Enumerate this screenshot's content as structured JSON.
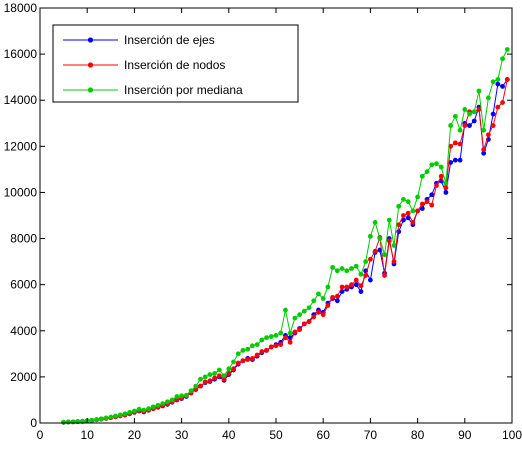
{
  "chart_data": {
    "type": "line",
    "title": "",
    "xlabel": "",
    "ylabel": "",
    "xlim": [
      0,
      100
    ],
    "ylim": [
      0,
      18000
    ],
    "xticks": [
      0,
      10,
      20,
      30,
      40,
      50,
      60,
      70,
      80,
      90,
      100
    ],
    "yticks": [
      0,
      2000,
      4000,
      6000,
      8000,
      10000,
      12000,
      14000,
      16000,
      18000
    ],
    "xtick_labels": [
      "0",
      "10",
      "20",
      "30",
      "40",
      "50",
      "60",
      "70",
      "80",
      "90",
      "100"
    ],
    "ytick_labels": [
      "0",
      "2000",
      "4000",
      "6000",
      "8000",
      "10000",
      "12000",
      "14000",
      "16000",
      "18000"
    ],
    "grid": false,
    "legend_position": "top-left",
    "x": [
      5,
      6,
      7,
      8,
      9,
      10,
      11,
      12,
      13,
      14,
      15,
      16,
      17,
      18,
      19,
      20,
      21,
      22,
      23,
      24,
      25,
      26,
      27,
      28,
      29,
      30,
      31,
      32,
      33,
      34,
      35,
      36,
      37,
      38,
      39,
      40,
      41,
      42,
      43,
      44,
      45,
      46,
      47,
      48,
      49,
      50,
      51,
      52,
      53,
      54,
      55,
      56,
      57,
      58,
      59,
      60,
      61,
      62,
      63,
      64,
      65,
      66,
      67,
      68,
      69,
      70,
      71,
      72,
      73,
      74,
      75,
      76,
      77,
      78,
      79,
      80,
      81,
      82,
      83,
      84,
      85,
      86,
      87,
      88,
      89,
      90,
      91,
      92,
      93,
      94,
      95,
      96,
      97,
      98,
      99
    ],
    "series": [
      {
        "name": "Inserción de ejes",
        "color": "#0000ff",
        "values": [
          30,
          40,
          50,
          60,
          70,
          90,
          110,
          140,
          170,
          200,
          230,
          270,
          310,
          350,
          400,
          460,
          520,
          480,
          550,
          620,
          680,
          740,
          810,
          900,
          1000,
          1060,
          1150,
          1300,
          1450,
          1600,
          1750,
          1800,
          1900,
          2000,
          1850,
          2100,
          2300,
          2550,
          2700,
          2800,
          2750,
          2900,
          3050,
          3150,
          3300,
          3400,
          3500,
          3800,
          3700,
          3900,
          4100,
          4300,
          4400,
          4700,
          4900,
          4800,
          5200,
          5400,
          5300,
          5700,
          5800,
          5900,
          6000,
          5700,
          6600,
          6200,
          7400,
          7500,
          6500,
          8000,
          6900,
          8300,
          8800,
          8900,
          8600,
          9200,
          9300,
          9700,
          9900,
          10400,
          10500,
          10000,
          11300,
          11400,
          11400,
          13000,
          12900,
          13100,
          13700,
          11700,
          12300,
          13400,
          14700,
          14600,
          14900
        ]
      },
      {
        "name": "Inserción de nodos",
        "color": "#ff0000",
        "values": [
          30,
          40,
          50,
          60,
          70,
          90,
          110,
          140,
          170,
          200,
          230,
          270,
          310,
          350,
          400,
          470,
          540,
          500,
          560,
          620,
          690,
          760,
          840,
          920,
          1020,
          1090,
          1180,
          1300,
          1450,
          1600,
          1780,
          1830,
          1950,
          2050,
          1900,
          2150,
          2350,
          2600,
          2700,
          2750,
          2800,
          2950,
          3100,
          3150,
          3300,
          3350,
          3400,
          3700,
          3500,
          3950,
          4050,
          4300,
          4400,
          4600,
          4800,
          4700,
          5100,
          5450,
          5500,
          5900,
          5900,
          6000,
          6200,
          5950,
          6400,
          7100,
          7450,
          8050,
          6400,
          7900,
          7000,
          8600,
          9000,
          9100,
          8700,
          9200,
          9500,
          9600,
          9450,
          10300,
          10700,
          10200,
          12000,
          12150,
          12100,
          12900,
          13500,
          13500,
          13600,
          11850,
          12500,
          12900,
          13700,
          13900,
          14900
        ]
      },
      {
        "name": "Inserción por mediana",
        "color": "#00cc00",
        "values": [
          30,
          40,
          50,
          60,
          80,
          100,
          120,
          150,
          180,
          220,
          260,
          300,
          350,
          400,
          460,
          520,
          600,
          560,
          620,
          700,
          770,
          840,
          920,
          1000,
          1150,
          1180,
          1200,
          1400,
          1600,
          1900,
          2000,
          2100,
          2150,
          2300,
          2050,
          2350,
          2650,
          3000,
          3150,
          3200,
          3350,
          3400,
          3600,
          3700,
          3750,
          3800,
          3900,
          4900,
          3900,
          4550,
          4700,
          4850,
          5000,
          5300,
          5600,
          5400,
          5900,
          6750,
          6600,
          6700,
          6600,
          6700,
          6800,
          6450,
          7000,
          8100,
          8700,
          8000,
          7300,
          8800,
          7700,
          9400,
          9700,
          9600,
          9200,
          9800,
          10700,
          10900,
          11200,
          11250,
          11100,
          10400,
          12900,
          13300,
          12700,
          13600,
          13400,
          13500,
          14400,
          12700,
          14100,
          14800,
          14900,
          15800,
          16200
        ]
      }
    ]
  }
}
